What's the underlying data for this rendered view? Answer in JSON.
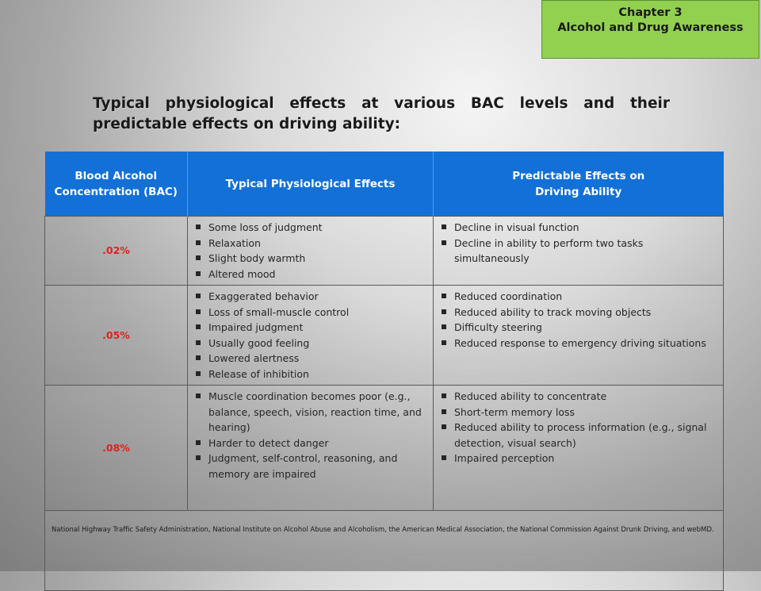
{
  "chapter": {
    "line1": "Chapter 3",
    "line2": "Alcohol and Drug Awareness"
  },
  "title": "Typical physiological effects at various BAC levels and their predictable effects on driving ability:",
  "table": {
    "headers": {
      "bac_line1": "Blood Alcohol",
      "bac_line2": "Concentration (BAC)",
      "physio": "Typical Physiological Effects",
      "driving_line1": "Predictable Effects on",
      "driving_line2": "Driving Ability"
    },
    "rows": [
      {
        "bac": ".02%",
        "physio": [
          "Some loss of judgment",
          "Relaxation",
          "Slight body warmth",
          "Altered mood"
        ],
        "driving": [
          "Decline in visual function",
          "Decline in ability to perform two tasks simultaneously"
        ]
      },
      {
        "bac": ".05%",
        "physio": [
          "Exaggerated behavior",
          "Loss of small-muscle control",
          "Impaired judgment",
          "Usually good feeling",
          "Lowered alertness",
          "Release of inhibition"
        ],
        "driving": [
          "Reduced coordination",
          "Reduced ability to track moving objects",
          "Difficulty steering",
          "Reduced response to emergency driving situations"
        ]
      },
      {
        "bac": ".08%",
        "physio": [
          "Muscle coordination becomes poor (e.g., balance, speech, vision, reaction time, and hearing)",
          "Harder to detect danger",
          "Judgment, self-control, reasoning, and memory are impaired"
        ],
        "driving": [
          "Reduced ability to concentrate",
          "Short-term memory loss",
          "Reduced ability to process information (e.g., signal detection, visual search)",
          "Impaired perception"
        ]
      }
    ],
    "source": "National Highway Traffic Safety Administration, National Institute on Alcohol Abuse and Alcoholism, the American Medical Association, the National Commission Against Drunk Driving, and webMD."
  }
}
